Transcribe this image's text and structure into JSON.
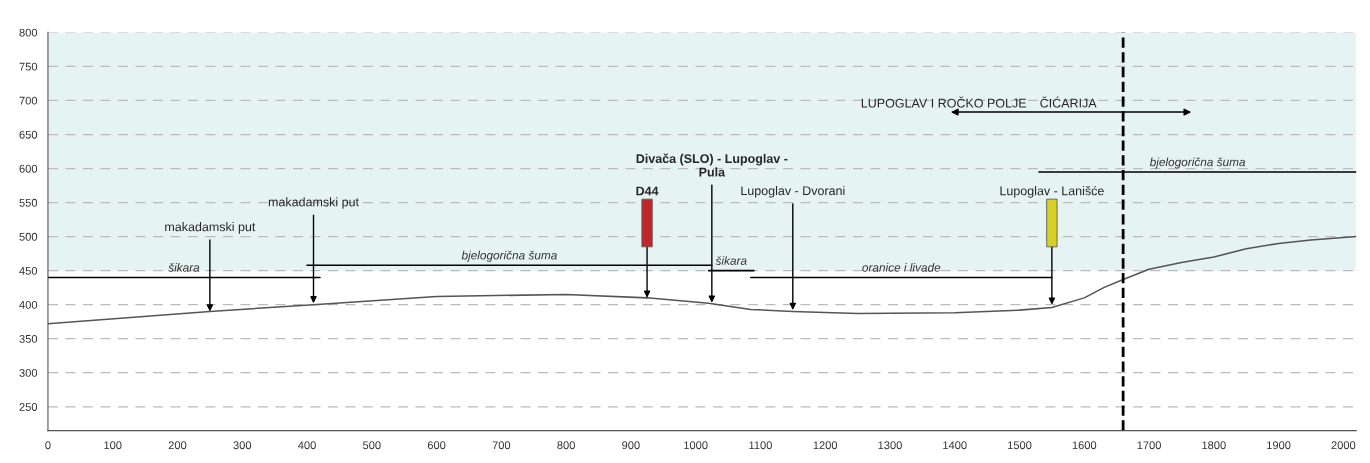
{
  "chart_data": {
    "type": "line",
    "xlim": [
      0,
      2020
    ],
    "ylim": [
      215,
      800
    ],
    "xticks": [
      0,
      100,
      200,
      300,
      400,
      500,
      600,
      700,
      800,
      900,
      1000,
      1100,
      1200,
      1300,
      1400,
      1500,
      1600,
      1700,
      1800,
      1900,
      2000
    ],
    "yticks": [
      250,
      300,
      350,
      400,
      450,
      500,
      550,
      600,
      650,
      700,
      750,
      800
    ],
    "grid": "y",
    "series": [
      {
        "color": "#555555",
        "x": [
          0,
          250,
          410,
          600,
          800,
          925,
          1020,
          1085,
          1150,
          1250,
          1400,
          1500,
          1550,
          1600,
          1630,
          1660,
          1700,
          1750,
          1800,
          1850,
          1900,
          1950,
          2020
        ],
        "values": [
          372,
          390,
          400,
          412,
          415,
          410,
          402,
          393,
          390,
          387,
          388,
          392,
          396,
          410,
          425,
          437,
          452,
          462,
          470,
          482,
          490,
          495,
          500
        ]
      },
      {
        "name": "šikara",
        "color": "#000000",
        "x": [
          0,
          420
        ],
        "values": [
          440,
          440
        ]
      },
      {
        "name": "bjelogorična šuma",
        "color": "#000000",
        "x": [
          400,
          1025
        ],
        "values": [
          458,
          458
        ]
      },
      {
        "name": "šikara",
        "color": "#000000",
        "x": [
          1020,
          1090
        ],
        "values": [
          450,
          450
        ]
      },
      {
        "name": "oranice i livade",
        "color": "#000000",
        "x": [
          1085,
          1550
        ],
        "values": [
          440,
          440
        ]
      },
      {
        "name": "bjelogorična šuma",
        "color": "#000000",
        "x": [
          1530,
          2020
        ],
        "values": [
          595,
          595
        ]
      }
    ],
    "bands": [
      {
        "axis": "y",
        "from": 450,
        "to": 800,
        "color": "#e6f3f3"
      }
    ],
    "ref_lines": [
      {
        "axis": "x",
        "value": 1660,
        "label": null,
        "color": "#000000",
        "line_style": "dashed"
      }
    ],
    "annotations": [
      {
        "text": "makadamski put",
        "x": 250,
        "y": 390
      },
      {
        "text": "makadamski put",
        "x": 410,
        "y": 402
      },
      {
        "text": "D44",
        "x": 925,
        "y": 410
      },
      {
        "text": "Divača (SLO) - Lupoglav -\nPula",
        "x": 1025,
        "y": 403
      },
      {
        "text": "Lupoglav - Dvorani",
        "x": 1150,
        "y": 392
      },
      {
        "text": "Lupoglav - Lanišće",
        "x": 1550,
        "y": 400
      },
      "LUPOGLAV I ROČKO POLJE",
      "ČIĆARIJA"
    ]
  }
}
